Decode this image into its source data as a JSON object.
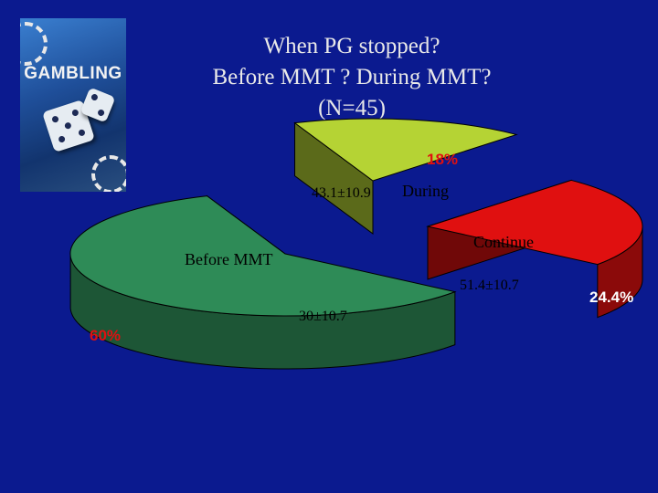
{
  "title_lines": [
    "When PG stopped?",
    "Before MMT ? During MMT?",
    "(N=45)"
  ],
  "cover": {
    "brand_text": "GAMBLING"
  },
  "colors": {
    "background": "#0b1a8f",
    "before": "#2e8b57",
    "during": "#b5d334",
    "continue": "#e01010",
    "before_percent_label": "#e01010",
    "during_percent_label": "#e01010",
    "continue_percent_label": "#ffffff"
  },
  "chart_data": {
    "type": "pie",
    "style": "3d-exploded",
    "title": "When PG stopped? Before MMT ? During MMT? (N=45)",
    "slices": [
      {
        "name": "Before MMT",
        "percent": 60,
        "percent_label": "60%",
        "age_label": "30±10.7"
      },
      {
        "name": "During",
        "percent": 18,
        "percent_label": "18%",
        "age_label": "43.1±10.9"
      },
      {
        "name": "Continue",
        "percent": 24.4,
        "percent_label": "24.4%",
        "age_label": "51.4±10.7"
      }
    ]
  }
}
